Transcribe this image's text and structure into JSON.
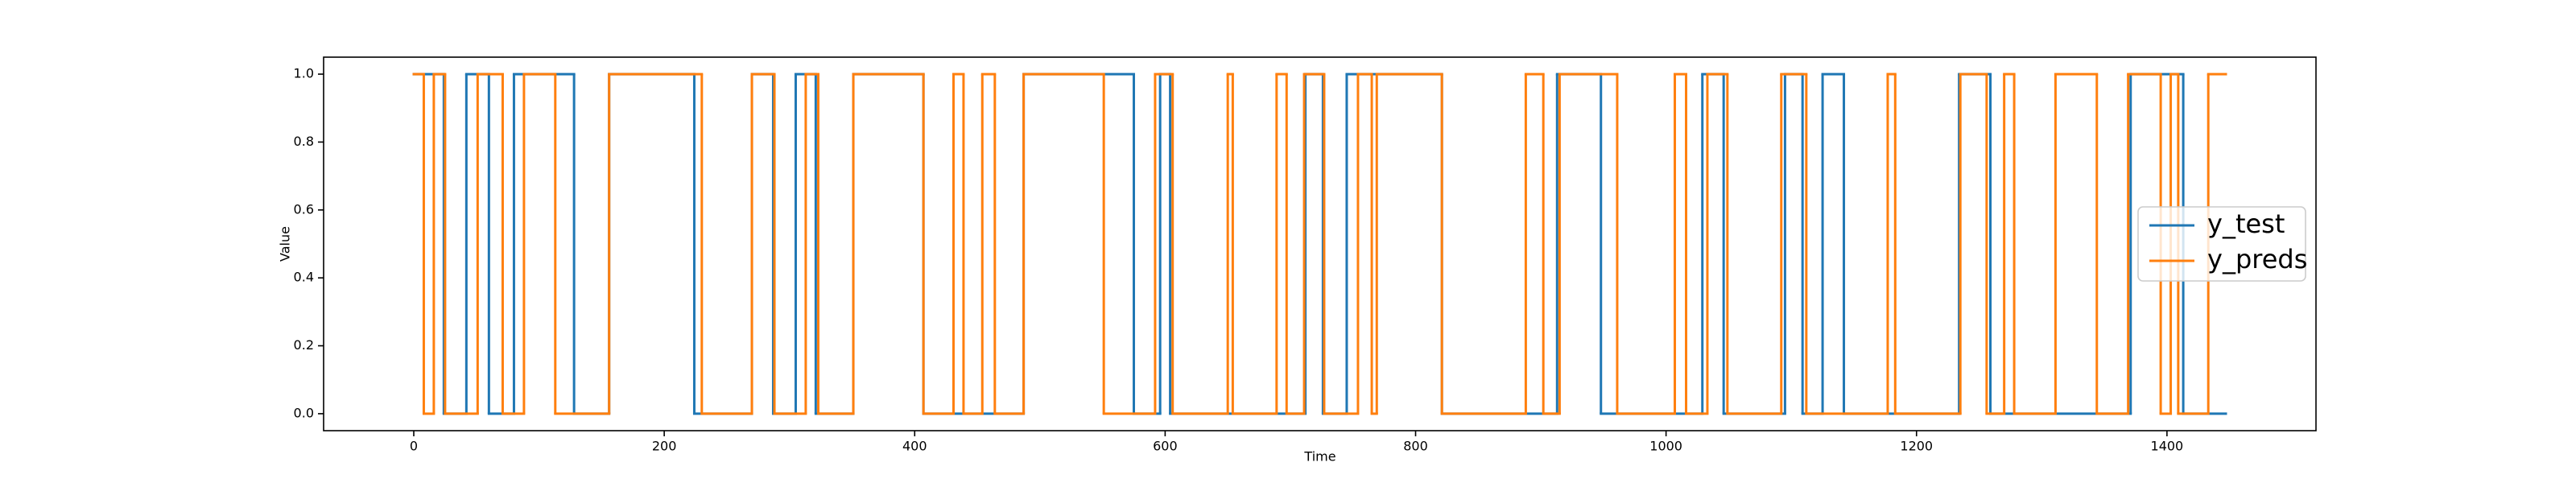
{
  "chart_data": {
    "type": "step",
    "xlabel": "Time",
    "ylabel": "Value",
    "xlim": [
      -72,
      1519
    ],
    "ylim": [
      -0.05,
      1.05
    ],
    "xticks": [
      0,
      200,
      400,
      600,
      800,
      1000,
      1200,
      1400
    ],
    "yticks": [
      {
        "value": 0,
        "label": "0.0"
      },
      {
        "value": 0.2,
        "label": "0.2"
      },
      {
        "value": 0.4,
        "label": "0.4"
      },
      {
        "value": 0.6,
        "label": "0.6"
      },
      {
        "value": 0.8,
        "label": "0.8"
      },
      {
        "value": 1,
        "label": "1.0"
      }
    ],
    "grid": false,
    "legend": "center right",
    "series": [
      {
        "name": "y_test",
        "color": "#1f77b4",
        "x": [
          0,
          24,
          42,
          60,
          80,
          128,
          156,
          224,
          270,
          287,
          305,
          321,
          351,
          407,
          487,
          575,
          596,
          604,
          712,
          726,
          745,
          821,
          913,
          948,
          1029,
          1046,
          1095,
          1109,
          1125,
          1142,
          1234,
          1259,
          1371,
          1413,
          1447
        ],
        "values": [
          1,
          0,
          1,
          0,
          1,
          0,
          1,
          0,
          1,
          0,
          1,
          0,
          1,
          0,
          1,
          0,
          1,
          0,
          1,
          0,
          1,
          0,
          1,
          0,
          1,
          0,
          1,
          0,
          1,
          0,
          1,
          0,
          1,
          0,
          0
        ]
      },
      {
        "name": "y_preds",
        "color": "#ff7f0e",
        "x": [
          0,
          8,
          16,
          25,
          51,
          71,
          88,
          113,
          156,
          230,
          270,
          288,
          313,
          323,
          351,
          407,
          431,
          439,
          454,
          464,
          487,
          551,
          592,
          606,
          650,
          654,
          689,
          697,
          711,
          727,
          754,
          765,
          769,
          821,
          888,
          902,
          915,
          961,
          1007,
          1016,
          1033,
          1049,
          1092,
          1112,
          1177,
          1183,
          1235,
          1256,
          1270,
          1278,
          1311,
          1344,
          1369,
          1395,
          1403,
          1409,
          1433,
          1447
        ],
        "values": [
          1,
          0,
          1,
          0,
          1,
          0,
          1,
          0,
          1,
          0,
          1,
          0,
          1,
          0,
          1,
          0,
          1,
          0,
          1,
          0,
          1,
          0,
          1,
          0,
          1,
          0,
          1,
          0,
          1,
          0,
          1,
          0,
          1,
          0,
          1,
          0,
          1,
          0,
          1,
          0,
          1,
          0,
          1,
          0,
          1,
          0,
          1,
          0,
          1,
          0,
          1,
          0,
          1,
          0,
          1,
          0,
          1,
          1
        ]
      }
    ]
  }
}
